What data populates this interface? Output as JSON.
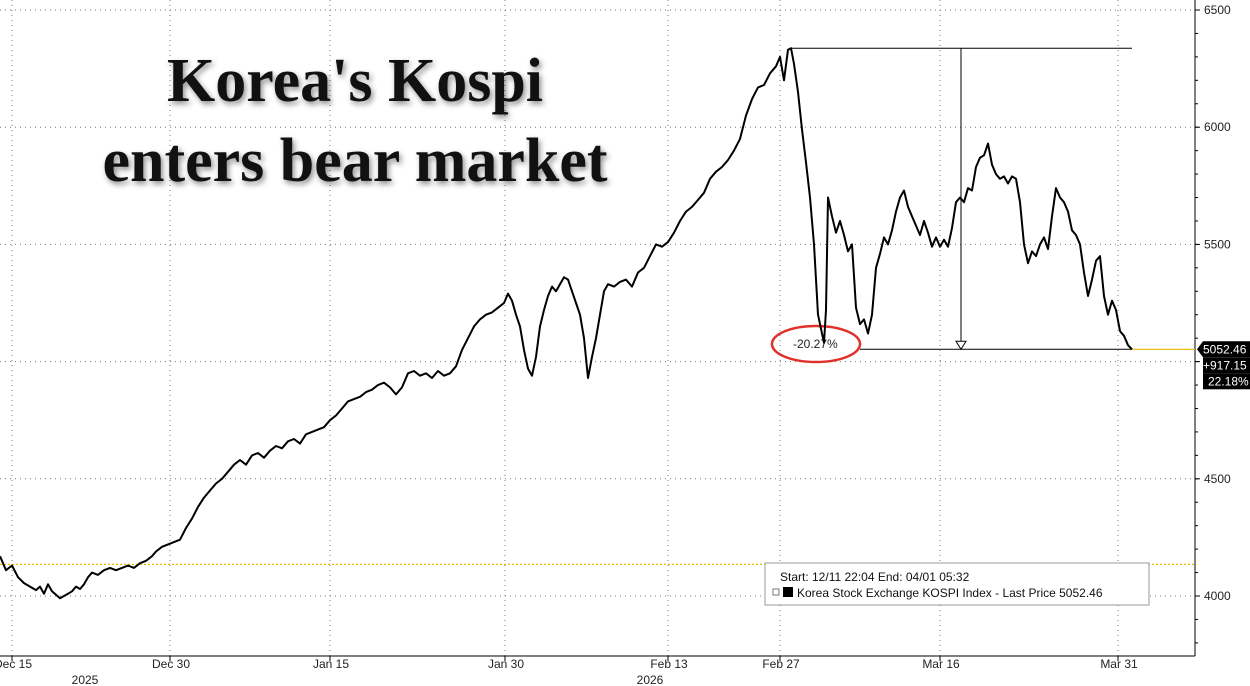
{
  "chart_data": {
    "type": "line",
    "title_lines": [
      "Korea's Kospi",
      "enters bear market"
    ],
    "ylim": [
      3780,
      6500
    ],
    "y_ticks": [
      4000,
      4500,
      5000,
      5500,
      6000,
      6500
    ],
    "y_tick_labels": [
      "4000",
      "4500",
      "",
      "5500",
      "6000",
      "6500"
    ],
    "x_tick_labels": [
      "Dec 15",
      "Dec 30",
      "Jan 15",
      "Jan 30",
      "Feb 13",
      "Feb 27",
      "Mar 16",
      "Mar 31"
    ],
    "year_labels": [
      "2025",
      "2026"
    ],
    "grid": true,
    "start_reference": 4135,
    "last_price": 5052.46,
    "last_price_label": "5052.46",
    "change_label": "+917.15",
    "change_pct_label": "22.18%",
    "peak_value": 6337,
    "drawdown_label": "-20.27%",
    "legend": {
      "range": "Start: 12/11 22:04 End: 04/01 05:32",
      "series": "Korea Stock Exchange KOSPI Index - Last Price 5052.46"
    },
    "series": [
      {
        "points": [
          [
            0,
            4170
          ],
          [
            6,
            4110
          ],
          [
            12,
            4130
          ],
          [
            18,
            4080
          ],
          [
            24,
            4055
          ],
          [
            30,
            4040
          ],
          [
            36,
            4025
          ],
          [
            40,
            4040
          ],
          [
            44,
            4010
          ],
          [
            48,
            4050
          ],
          [
            52,
            4020
          ],
          [
            56,
            4005
          ],
          [
            60,
            3990
          ],
          [
            64,
            4000
          ],
          [
            68,
            4010
          ],
          [
            72,
            4020
          ],
          [
            76,
            4040
          ],
          [
            80,
            4030
          ],
          [
            84,
            4050
          ],
          [
            88,
            4080
          ],
          [
            92,
            4100
          ],
          [
            98,
            4090
          ],
          [
            104,
            4110
          ],
          [
            110,
            4120
          ],
          [
            116,
            4110
          ],
          [
            122,
            4120
          ],
          [
            128,
            4130
          ],
          [
            134,
            4120
          ],
          [
            140,
            4140
          ],
          [
            146,
            4150
          ],
          [
            152,
            4170
          ],
          [
            156,
            4190
          ],
          [
            162,
            4210
          ],
          [
            168,
            4220
          ],
          [
            174,
            4230
          ],
          [
            180,
            4240
          ],
          [
            186,
            4290
          ],
          [
            192,
            4330
          ],
          [
            198,
            4380
          ],
          [
            204,
            4420
          ],
          [
            210,
            4450
          ],
          [
            216,
            4480
          ],
          [
            222,
            4500
          ],
          [
            228,
            4530
          ],
          [
            234,
            4560
          ],
          [
            240,
            4580
          ],
          [
            246,
            4560
          ],
          [
            252,
            4600
          ],
          [
            258,
            4610
          ],
          [
            264,
            4590
          ],
          [
            270,
            4620
          ],
          [
            276,
            4640
          ],
          [
            282,
            4630
          ],
          [
            288,
            4660
          ],
          [
            294,
            4670
          ],
          [
            300,
            4650
          ],
          [
            306,
            4690
          ],
          [
            312,
            4700
          ],
          [
            318,
            4710
          ],
          [
            324,
            4720
          ],
          [
            330,
            4750
          ],
          [
            336,
            4770
          ],
          [
            342,
            4800
          ],
          [
            348,
            4830
          ],
          [
            354,
            4840
          ],
          [
            360,
            4850
          ],
          [
            366,
            4870
          ],
          [
            372,
            4880
          ],
          [
            378,
            4900
          ],
          [
            384,
            4910
          ],
          [
            390,
            4890
          ],
          [
            396,
            4860
          ],
          [
            402,
            4890
          ],
          [
            408,
            4950
          ],
          [
            414,
            4960
          ],
          [
            420,
            4940
          ],
          [
            426,
            4950
          ],
          [
            432,
            4930
          ],
          [
            438,
            4960
          ],
          [
            444,
            4940
          ],
          [
            450,
            4950
          ],
          [
            456,
            4980
          ],
          [
            462,
            5050
          ],
          [
            468,
            5100
          ],
          [
            474,
            5150
          ],
          [
            480,
            5180
          ],
          [
            486,
            5200
          ],
          [
            492,
            5210
          ],
          [
            498,
            5230
          ],
          [
            504,
            5250
          ],
          [
            508,
            5290
          ],
          [
            512,
            5260
          ],
          [
            516,
            5200
          ],
          [
            520,
            5150
          ],
          [
            524,
            5050
          ],
          [
            528,
            4970
          ],
          [
            532,
            4940
          ],
          [
            536,
            5020
          ],
          [
            540,
            5150
          ],
          [
            544,
            5220
          ],
          [
            548,
            5280
          ],
          [
            552,
            5320
          ],
          [
            556,
            5300
          ],
          [
            560,
            5330
          ],
          [
            564,
            5360
          ],
          [
            568,
            5350
          ],
          [
            572,
            5300
          ],
          [
            576,
            5250
          ],
          [
            580,
            5200
          ],
          [
            584,
            5100
          ],
          [
            588,
            4930
          ],
          [
            592,
            5020
          ],
          [
            596,
            5100
          ],
          [
            600,
            5200
          ],
          [
            604,
            5300
          ],
          [
            608,
            5330
          ],
          [
            614,
            5320
          ],
          [
            620,
            5340
          ],
          [
            626,
            5350
          ],
          [
            632,
            5320
          ],
          [
            638,
            5380
          ],
          [
            644,
            5400
          ],
          [
            650,
            5450
          ],
          [
            656,
            5500
          ],
          [
            662,
            5490
          ],
          [
            668,
            5510
          ],
          [
            674,
            5550
          ],
          [
            680,
            5600
          ],
          [
            686,
            5640
          ],
          [
            692,
            5660
          ],
          [
            698,
            5690
          ],
          [
            704,
            5720
          ],
          [
            710,
            5780
          ],
          [
            716,
            5810
          ],
          [
            722,
            5830
          ],
          [
            728,
            5860
          ],
          [
            734,
            5900
          ],
          [
            740,
            5950
          ],
          [
            746,
            6050
          ],
          [
            752,
            6120
          ],
          [
            758,
            6170
          ],
          [
            764,
            6180
          ],
          [
            770,
            6230
          ],
          [
            776,
            6260
          ],
          [
            780,
            6300
          ],
          [
            784,
            6200
          ],
          [
            788,
            6330
          ],
          [
            791,
            6337
          ],
          [
            794,
            6270
          ],
          [
            798,
            6150
          ],
          [
            802,
            5990
          ],
          [
            806,
            5850
          ],
          [
            810,
            5700
          ],
          [
            814,
            5500
          ],
          [
            818,
            5200
          ],
          [
            822,
            5120
          ],
          [
            824,
            5080
          ],
          [
            826,
            5220
          ],
          [
            828,
            5700
          ],
          [
            832,
            5620
          ],
          [
            836,
            5550
          ],
          [
            840,
            5600
          ],
          [
            844,
            5540
          ],
          [
            848,
            5470
          ],
          [
            852,
            5500
          ],
          [
            856,
            5230
          ],
          [
            860,
            5160
          ],
          [
            864,
            5180
          ],
          [
            868,
            5120
          ],
          [
            872,
            5200
          ],
          [
            876,
            5400
          ],
          [
            880,
            5460
          ],
          [
            884,
            5530
          ],
          [
            888,
            5500
          ],
          [
            892,
            5560
          ],
          [
            896,
            5640
          ],
          [
            900,
            5700
          ],
          [
            904,
            5730
          ],
          [
            908,
            5660
          ],
          [
            912,
            5620
          ],
          [
            916,
            5580
          ],
          [
            920,
            5540
          ],
          [
            924,
            5600
          ],
          [
            928,
            5550
          ],
          [
            932,
            5490
          ],
          [
            936,
            5530
          ],
          [
            940,
            5490
          ],
          [
            944,
            5520
          ],
          [
            948,
            5490
          ],
          [
            952,
            5570
          ],
          [
            956,
            5680
          ],
          [
            960,
            5700
          ],
          [
            964,
            5680
          ],
          [
            968,
            5740
          ],
          [
            972,
            5730
          ],
          [
            976,
            5830
          ],
          [
            980,
            5870
          ],
          [
            984,
            5880
          ],
          [
            988,
            5930
          ],
          [
            992,
            5840
          ],
          [
            996,
            5800
          ],
          [
            1000,
            5780
          ],
          [
            1004,
            5790
          ],
          [
            1008,
            5760
          ],
          [
            1012,
            5790
          ],
          [
            1016,
            5780
          ],
          [
            1020,
            5680
          ],
          [
            1024,
            5500
          ],
          [
            1028,
            5420
          ],
          [
            1032,
            5470
          ],
          [
            1036,
            5450
          ],
          [
            1040,
            5500
          ],
          [
            1044,
            5530
          ],
          [
            1048,
            5480
          ],
          [
            1052,
            5620
          ],
          [
            1056,
            5740
          ],
          [
            1060,
            5700
          ],
          [
            1064,
            5680
          ],
          [
            1068,
            5640
          ],
          [
            1072,
            5560
          ],
          [
            1076,
            5540
          ],
          [
            1080,
            5500
          ],
          [
            1084,
            5380
          ],
          [
            1088,
            5280
          ],
          [
            1092,
            5350
          ],
          [
            1096,
            5430
          ],
          [
            1100,
            5450
          ],
          [
            1104,
            5280
          ],
          [
            1108,
            5200
          ],
          [
            1112,
            5260
          ],
          [
            1116,
            5220
          ],
          [
            1120,
            5130
          ],
          [
            1124,
            5110
          ],
          [
            1128,
            5070
          ],
          [
            1132,
            5052.46
          ]
        ]
      }
    ]
  }
}
